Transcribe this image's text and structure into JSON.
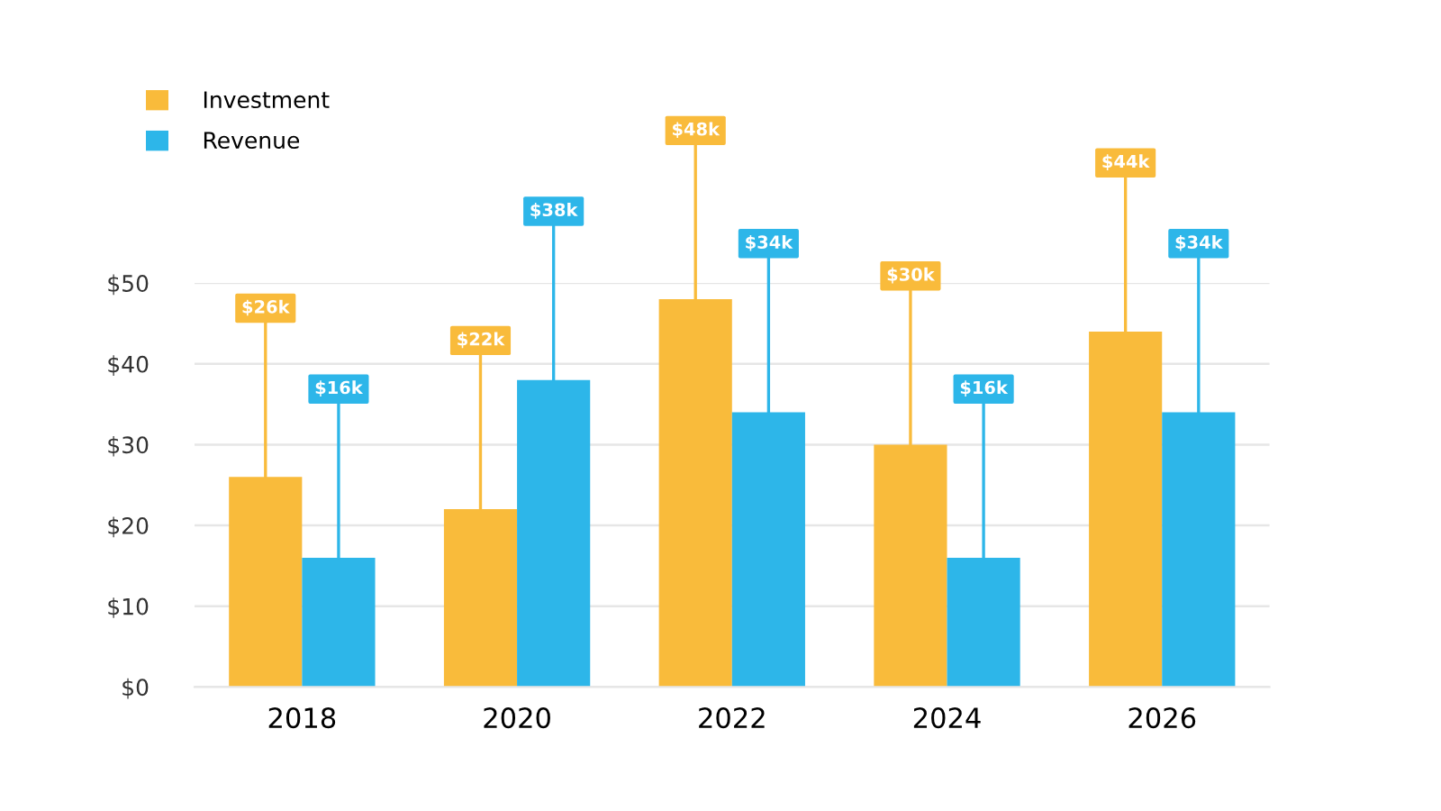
{
  "chart_data": {
    "type": "bar",
    "categories": [
      "2018",
      "2020",
      "2022",
      "2024",
      "2026"
    ],
    "series": [
      {
        "name": "Investment",
        "color": "#f9bb3b",
        "values": [
          26,
          22,
          48,
          30,
          44
        ],
        "value_labels": [
          "$26k",
          "$22k",
          "$48k",
          "$30k",
          "$44k"
        ]
      },
      {
        "name": "Revenue",
        "color": "#2db6e9",
        "values": [
          16,
          38,
          34,
          16,
          34
        ],
        "value_labels": [
          "$16k",
          "$38k",
          "$34k",
          "$16k",
          "$34k"
        ]
      }
    ],
    "ylim": [
      0,
      50
    ],
    "yticks": [
      {
        "value": 0,
        "label": "$0"
      },
      {
        "value": 10,
        "label": "$10"
      },
      {
        "value": 20,
        "label": "$20"
      },
      {
        "value": 30,
        "label": "$30"
      },
      {
        "value": 40,
        "label": "$40"
      },
      {
        "value": 50,
        "label": "$50"
      }
    ],
    "grid": "y",
    "legend": "top left"
  }
}
